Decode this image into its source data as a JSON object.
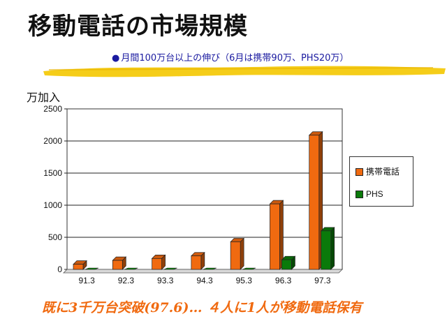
{
  "slide": {
    "title": "移動電話の市場規模",
    "subtitle_bullet": "●",
    "subtitle": "月間100万台以上の伸び（6月は携帯90万、PHS20万）",
    "footer": "既に3千万台突破(97.6)… ４人に1人が移動電話保有"
  },
  "colors": {
    "series1": "#f06a10",
    "series2": "#0a7a0a",
    "accent": "#f2c400"
  },
  "chart_data": {
    "type": "bar",
    "ylabel": "万加入",
    "ylim": [
      0,
      2500
    ],
    "yticks": [
      0,
      500,
      1000,
      1500,
      2000,
      2500
    ],
    "categories": [
      "91.3",
      "92.3",
      "93.3",
      "94.3",
      "95.3",
      "96.3",
      "97.3"
    ],
    "series": [
      {
        "name": "携帯電話",
        "values": [
          80,
          140,
          170,
          210,
          430,
          1020,
          2090
        ]
      },
      {
        "name": "PHS",
        "values": [
          0,
          0,
          0,
          0,
          0,
          150,
          600
        ]
      }
    ],
    "grid": true,
    "legend": "right"
  }
}
